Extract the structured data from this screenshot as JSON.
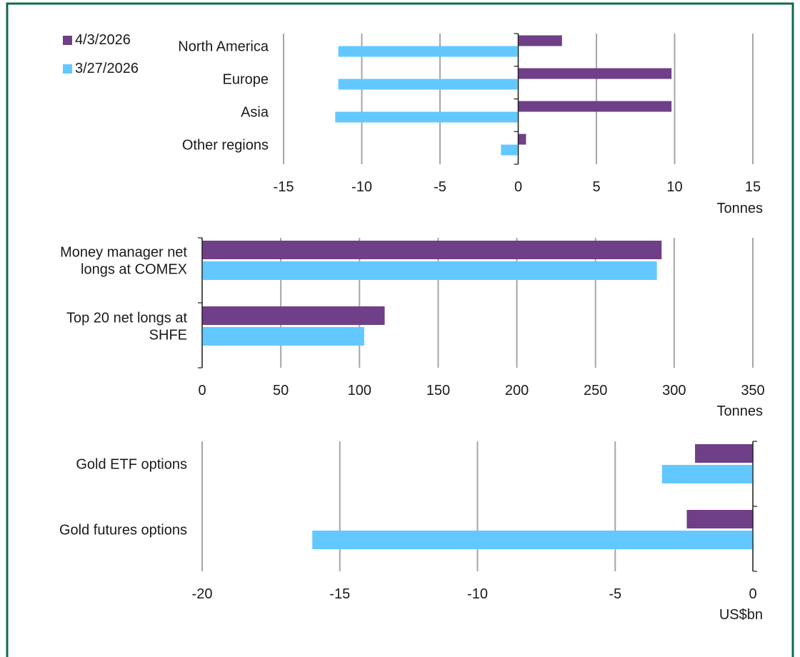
{
  "colors": {
    "border": "#0f6b4c",
    "series_a": "#6f3f87",
    "series_b": "#63c8ff",
    "grid": "#a6a6a6",
    "axis": "#1a1a1a"
  },
  "legend": {
    "items": [
      {
        "label": "4/3/2026"
      },
      {
        "label": "3/27/2026"
      }
    ]
  },
  "chart_data": [
    {
      "type": "bar",
      "orientation": "horizontal",
      "categories": [
        "North America",
        "Europe",
        "Asia",
        "Other regions"
      ],
      "series": [
        {
          "name": "4/3/2026",
          "values": [
            2.8,
            9.8,
            9.8,
            0.5
          ]
        },
        {
          "name": "3/27/2026",
          "values": [
            -11.5,
            -11.5,
            -11.7,
            -1.1
          ]
        }
      ],
      "xlim": [
        -15,
        15
      ],
      "xticks": [
        -15,
        -10,
        -5,
        0,
        5,
        10,
        15
      ],
      "xlabel": "Tonnes",
      "grid": true
    },
    {
      "type": "bar",
      "orientation": "horizontal",
      "categories": [
        "Money manager net longs at COMEX",
        "Top 20 net longs at SHFE"
      ],
      "category_lines": [
        [
          "Money manager net",
          "longs at COMEX"
        ],
        [
          "Top 20 net longs at",
          "SHFE"
        ]
      ],
      "series": [
        {
          "name": "4/3/2026",
          "values": [
            292,
            116
          ]
        },
        {
          "name": "3/27/2026",
          "values": [
            289,
            103
          ]
        }
      ],
      "xlim": [
        0,
        350
      ],
      "xticks": [
        0,
        50,
        100,
        150,
        200,
        250,
        300,
        350
      ],
      "xlabel": "Tonnes",
      "grid": true
    },
    {
      "type": "bar",
      "orientation": "horizontal",
      "categories": [
        "Gold ETF options",
        "Gold futures options"
      ],
      "series": [
        {
          "name": "4/3/2026",
          "values": [
            -2.1,
            -2.4
          ]
        },
        {
          "name": "3/27/2026",
          "values": [
            -3.3,
            -16.0
          ]
        }
      ],
      "xlim": [
        -20,
        0
      ],
      "xticks": [
        -20,
        -15,
        -10,
        -5,
        0
      ],
      "xlabel": "US$bn",
      "grid": true
    }
  ]
}
